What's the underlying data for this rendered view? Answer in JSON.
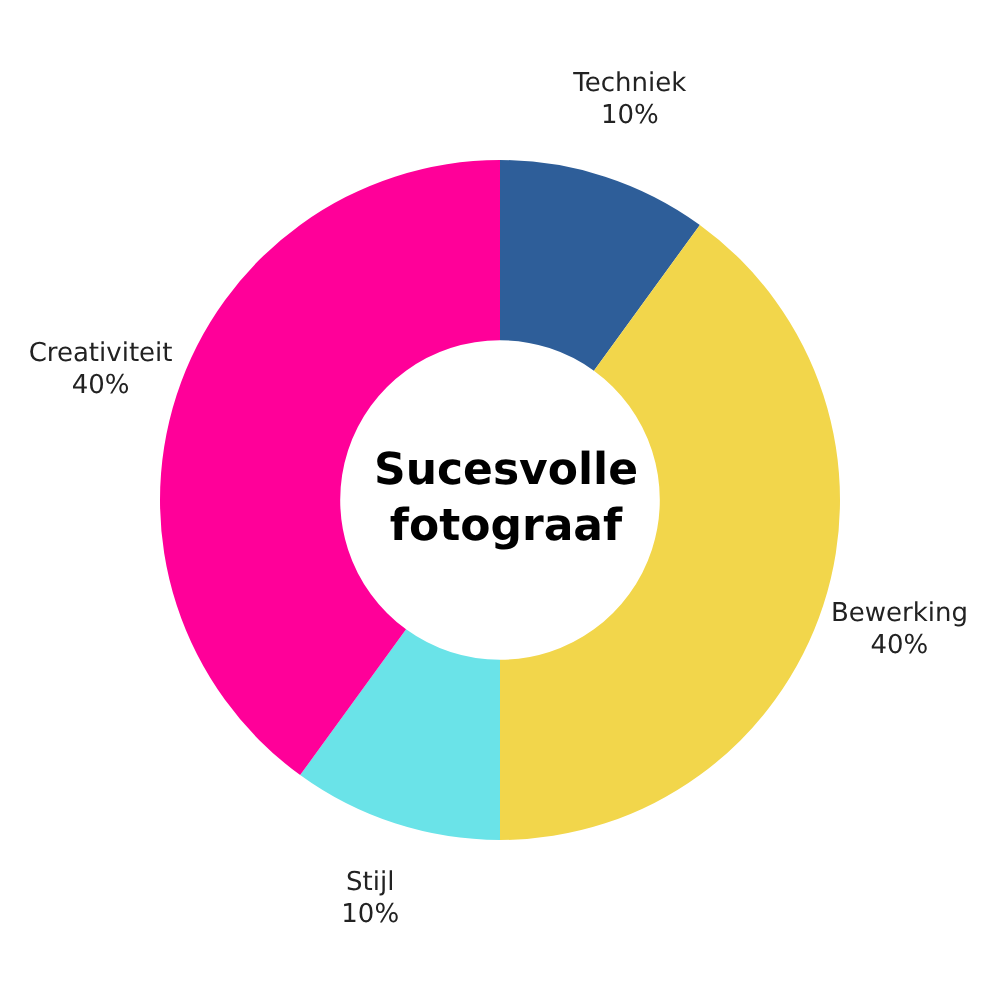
{
  "chart_data": {
    "type": "donut",
    "title": "Sucesvolle fotograaf",
    "categories": [
      "Techniek",
      "Bewerking",
      "Stijl",
      "Creativiteit"
    ],
    "values": [
      10,
      40,
      10,
      40
    ],
    "colors": [
      "#2e5e99",
      "#f2d64b",
      "#6ae3e8",
      "#ff0099"
    ],
    "value_labels": [
      "10%",
      "40%",
      "10%",
      "40%"
    ],
    "legend": false
  }
}
